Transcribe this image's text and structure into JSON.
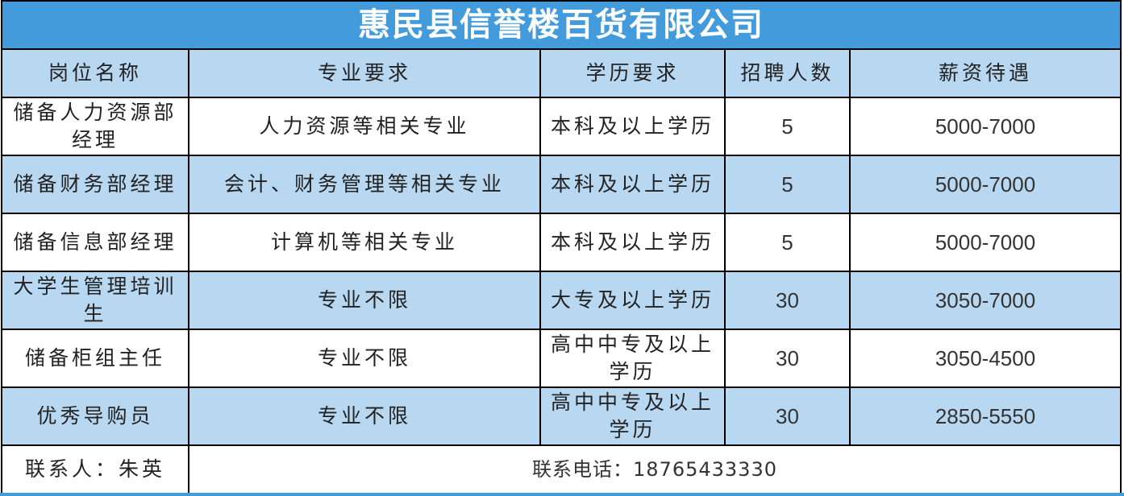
{
  "title": "惠民县信誉楼百货有限公司",
  "headers": [
    "岗位名称",
    "专业要求",
    "学历要求",
    "招聘人数",
    "薪资待遇"
  ],
  "rows": [
    {
      "position": "储备人力资源部经理",
      "major": "人力资源等相关专业",
      "education": "本科及以上学历",
      "count": "5",
      "salary": "5000-7000"
    },
    {
      "position": "储备财务部经理",
      "major": "会计、财务管理等相关专业",
      "education": "本科及以上学历",
      "count": "5",
      "salary": "5000-7000"
    },
    {
      "position": "储备信息部经理",
      "major": "计算机等相关专业",
      "education": "本科及以上学历",
      "count": "5",
      "salary": "5000-7000"
    },
    {
      "position": "大学生管理培训生",
      "major": "专业不限",
      "education": "大专及以上学历",
      "count": "30",
      "salary": "3050-7000"
    },
    {
      "position": "储备柜组主任",
      "major": "专业不限",
      "education": "高中中专及以上学历",
      "count": "30",
      "salary": "3050-4500"
    },
    {
      "position": "优秀导购员",
      "major": "专业不限",
      "education": "高中中专及以上学历",
      "count": "30",
      "salary": "2850-5550"
    }
  ],
  "footer": {
    "contact": "联系人：朱英",
    "phone": "联系电话：18765433330"
  },
  "colors": {
    "title_bg": "#449bdb",
    "header_bg": "#b8d7f0"
  }
}
